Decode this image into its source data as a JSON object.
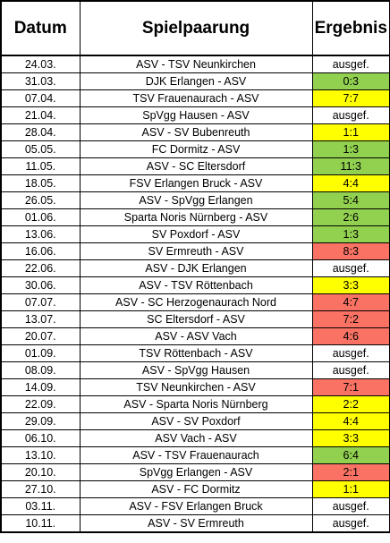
{
  "headers": {
    "date": "Datum",
    "match": "Spielpaarung",
    "result": "Ergebnis"
  },
  "colors": {
    "green": "#92d050",
    "yellow": "#ffff00",
    "red": "#fa7264",
    "none": "#ffffff"
  },
  "rows": [
    {
      "date": "24.03.",
      "match": "ASV - TSV Neunkirchen",
      "result": "ausgef.",
      "status": "none"
    },
    {
      "date": "31.03.",
      "match": "DJK Erlangen - ASV",
      "result": "0:3",
      "status": "green"
    },
    {
      "date": "07.04.",
      "match": "TSV Frauenaurach - ASV",
      "result": "7:7",
      "status": "yellow"
    },
    {
      "date": "21.04.",
      "match": "SpVgg Hausen - ASV",
      "result": "ausgef.",
      "status": "none"
    },
    {
      "date": "28.04.",
      "match": "ASV - SV Bubenreuth",
      "result": "1:1",
      "status": "yellow"
    },
    {
      "date": "05.05.",
      "match": "FC Dormitz - ASV",
      "result": "1:3",
      "status": "green"
    },
    {
      "date": "11.05.",
      "match": "ASV - SC Eltersdorf",
      "result": "11:3",
      "status": "green"
    },
    {
      "date": "18.05.",
      "match": "FSV Erlangen Bruck - ASV",
      "result": "4:4",
      "status": "yellow"
    },
    {
      "date": "26.05.",
      "match": "ASV - SpVgg Erlangen",
      "result": "5:4",
      "status": "green"
    },
    {
      "date": "01.06.",
      "match": "Sparta Noris Nürnberg - ASV",
      "result": "2:6",
      "status": "green"
    },
    {
      "date": "13.06.",
      "match": "SV Poxdorf - ASV",
      "result": "1:3",
      "status": "green"
    },
    {
      "date": "16.06.",
      "match": "SV Ermreuth - ASV",
      "result": "8:3",
      "status": "red"
    },
    {
      "date": "22.06.",
      "match": "ASV - DJK Erlangen",
      "result": "ausgef.",
      "status": "none"
    },
    {
      "date": "30.06.",
      "match": "ASV - TSV Röttenbach",
      "result": "3:3",
      "status": "yellow"
    },
    {
      "date": "07.07.",
      "match": "ASV - SC Herzogenaurach Nord",
      "result": "4:7",
      "status": "red"
    },
    {
      "date": "13.07.",
      "match": "SC Eltersdorf - ASV",
      "result": "7:2",
      "status": "red"
    },
    {
      "date": "20.07.",
      "match": "ASV - ASV Vach",
      "result": "4:6",
      "status": "red"
    },
    {
      "date": "01.09.",
      "match": "TSV Röttenbach - ASV",
      "result": "ausgef.",
      "status": "none"
    },
    {
      "date": "08.09.",
      "match": "ASV - SpVgg Hausen",
      "result": "ausgef.",
      "status": "none"
    },
    {
      "date": "14.09.",
      "match": "TSV Neunkirchen - ASV",
      "result": "7:1",
      "status": "red"
    },
    {
      "date": "22.09.",
      "match": "ASV - Sparta Noris Nürnberg",
      "result": "2:2",
      "status": "yellow"
    },
    {
      "date": "29.09.",
      "match": "ASV - SV Poxdorf",
      "result": "4:4",
      "status": "yellow"
    },
    {
      "date": "06.10.",
      "match": "ASV Vach - ASV",
      "result": "3:3",
      "status": "yellow"
    },
    {
      "date": "13.10.",
      "match": "ASV - TSV Frauenaurach",
      "result": "6:4",
      "status": "green"
    },
    {
      "date": "20.10.",
      "match": "SpVgg Erlangen - ASV",
      "result": "2:1",
      "status": "red"
    },
    {
      "date": "27.10.",
      "match": "ASV - FC Dormitz",
      "result": "1:1",
      "status": "yellow"
    },
    {
      "date": "03.11.",
      "match": "ASV - FSV Erlangen Bruck",
      "result": "ausgef.",
      "status": "none"
    },
    {
      "date": "10.11.",
      "match": "ASV - SV Ermreuth",
      "result": "ausgef.",
      "status": "none"
    }
  ]
}
